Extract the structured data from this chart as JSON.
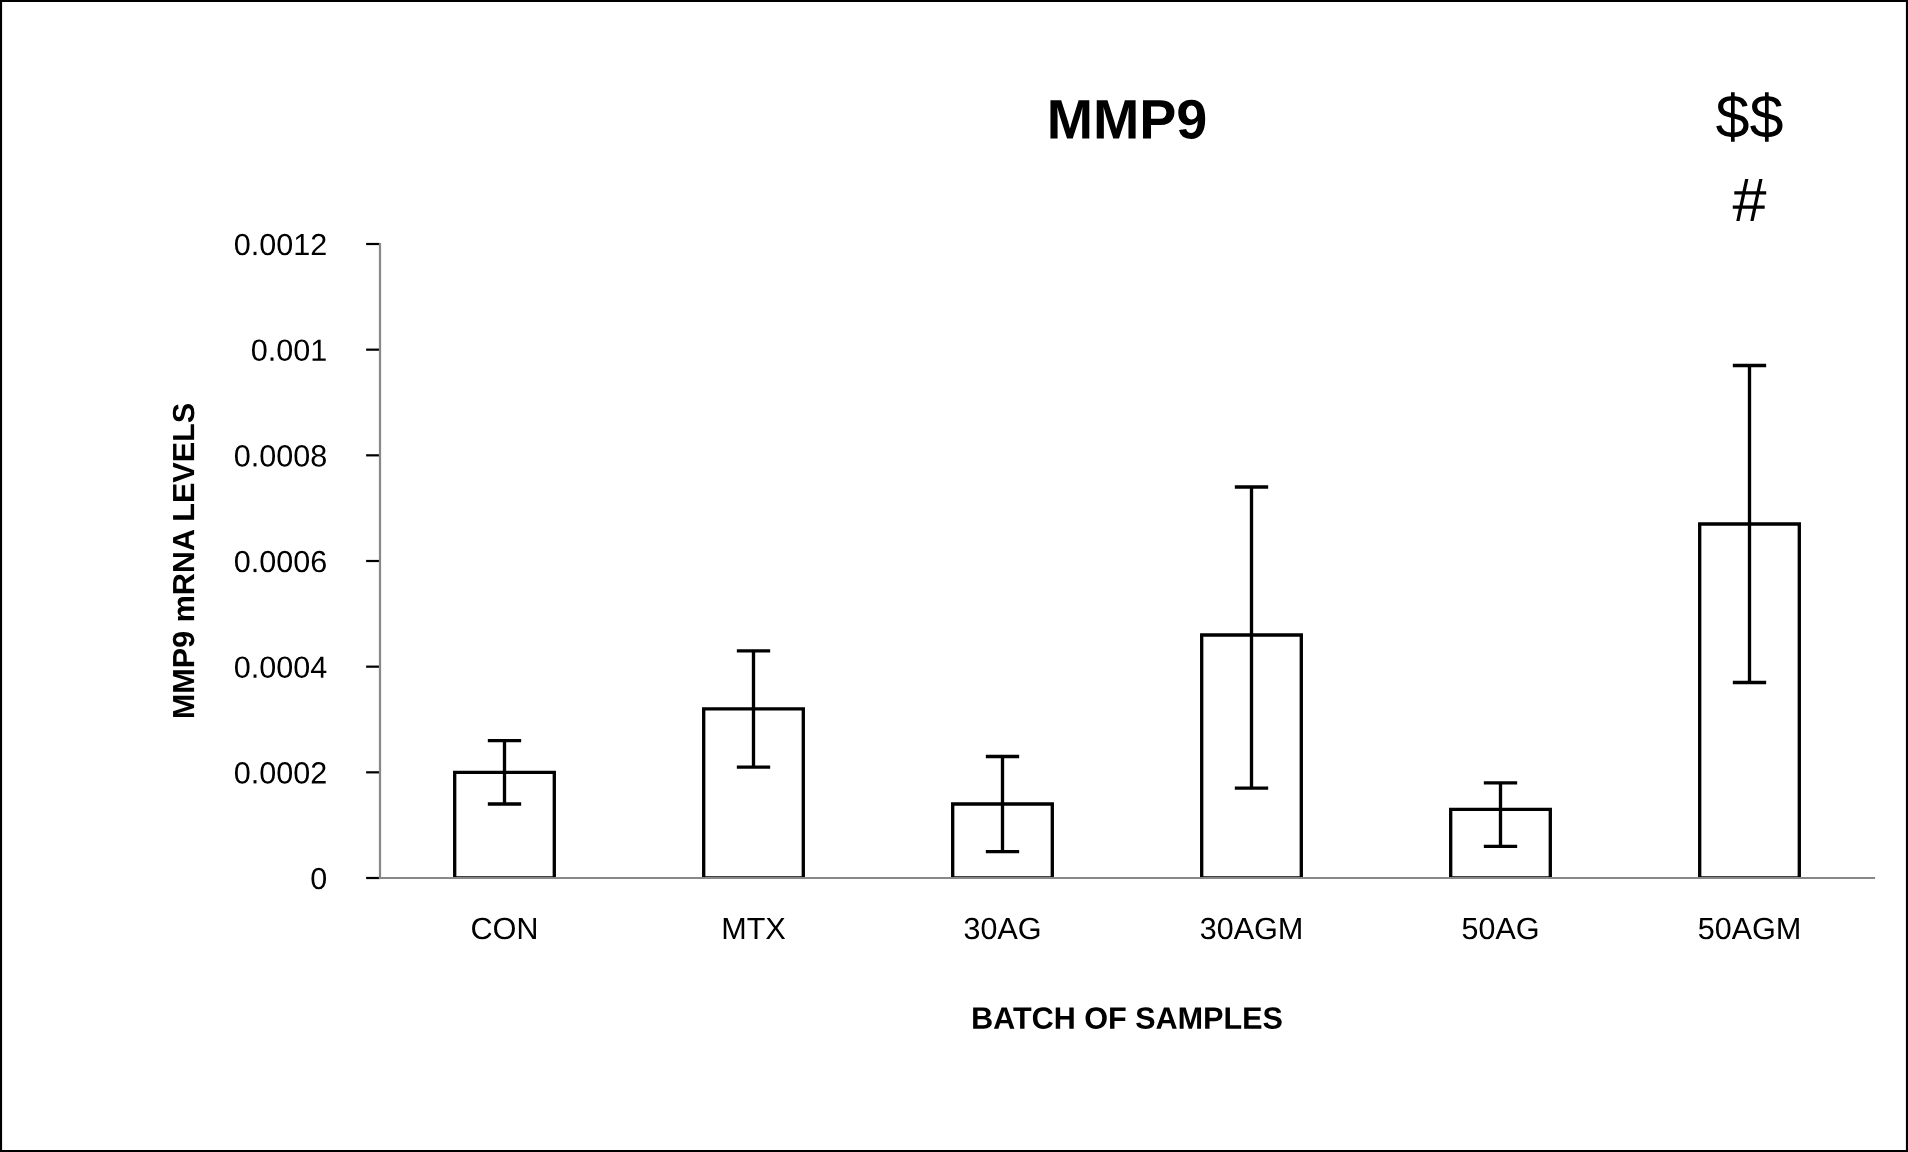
{
  "chart_data": {
    "type": "bar",
    "title": "MMP9",
    "xlabel": "BATCH OF SAMPLES",
    "ylabel": "MMP9 mRNA LEVELS",
    "categories": [
      "CON",
      "MTX",
      "30AG",
      "30AGM",
      "50AG",
      "50AGM"
    ],
    "values": [
      0.0002,
      0.00032,
      0.00014,
      0.00046,
      0.00013,
      0.00067
    ],
    "errors": [
      [
        0.00014,
        0.00026
      ],
      [
        0.00021,
        0.00043
      ],
      [
        5e-05,
        0.00023
      ],
      [
        0.00017,
        0.00074
      ],
      [
        6e-05,
        0.00018
      ],
      [
        0.00037,
        0.00097
      ]
    ],
    "color": "#ffffff",
    "ylim": [
      0,
      0.0012
    ],
    "yticks": [
      0,
      0.0002,
      0.0004,
      0.0006,
      0.0008,
      0.001,
      0.0012
    ],
    "grid": false,
    "legend": false,
    "annotations": [
      "$$",
      "#"
    ]
  }
}
